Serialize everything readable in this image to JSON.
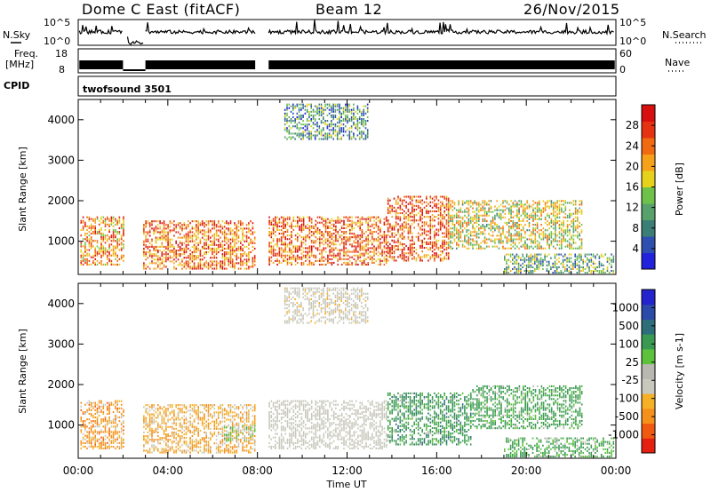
{
  "header": {
    "station": "Dome C East (fitACF)",
    "beam": "Beam 12",
    "date": "26/Nov/2015"
  },
  "panels": {
    "nsky_label": "N.Sky",
    "nsky_ticks": [
      "10^5",
      "10^0"
    ],
    "nsearch_label": "N.Search",
    "nsearch_ticks": [
      "10^5",
      "10^0"
    ],
    "freq_label": "Freq.",
    "freq_unit": "[MHz]",
    "freq_ticks": [
      "18",
      "8"
    ],
    "nave_label": "Nave",
    "nave_ticks": [
      "60",
      "0"
    ],
    "cpid_label": "CPID",
    "cpid_value": "twofsound 3501"
  },
  "colors": {
    "power_scale": [
      "#2222dd",
      "#2f4fb0",
      "#3b7e76",
      "#56a26a",
      "#6ec24a",
      "#e6d21a",
      "#f5a21a",
      "#f06a12",
      "#e63212",
      "#d80f0f"
    ],
    "velocity_scale": [
      "#e62010",
      "#f05a10",
      "#f5901a",
      "#f5b028",
      "#c8c8bc",
      "#b8b8b0",
      "#5cc23c",
      "#3a9a52",
      "#2e6e7a",
      "#2c4aa8",
      "#2424cc"
    ]
  },
  "chart_data": [
    {
      "type": "heatmap",
      "name": "power",
      "xlabel": "",
      "ylabel": "Slant Range [km]",
      "colorbar_label": "Power [dB]",
      "colorbar_ticks": [
        "28",
        "24",
        "20",
        "16",
        "12",
        "8",
        "4"
      ],
      "x_ticks": [],
      "y_ticks": [
        "4000",
        "3000",
        "2000",
        "1000"
      ],
      "xlim": [
        0,
        24
      ],
      "ylim": [
        180,
        4500
      ],
      "bands": [
        {
          "t0": 0.1,
          "t1": 2.0,
          "r0": 400,
          "r1": 1600,
          "value": 22
        },
        {
          "t0": 2.9,
          "t1": 7.9,
          "r0": 300,
          "r1": 1500,
          "value": 24
        },
        {
          "t0": 8.5,
          "t1": 13.8,
          "r0": 400,
          "r1": 1600,
          "value": 25
        },
        {
          "t0": 13.8,
          "t1": 16.5,
          "r0": 500,
          "r1": 2100,
          "value": 26
        },
        {
          "t0": 16.5,
          "t1": 22.5,
          "r0": 800,
          "r1": 2000,
          "value": 17
        },
        {
          "t0": 19.0,
          "t1": 23.9,
          "r0": 200,
          "r1": 700,
          "value": 12
        },
        {
          "t0": 9.2,
          "t1": 12.9,
          "r0": 3500,
          "r1": 4400,
          "value": 10
        }
      ]
    },
    {
      "type": "heatmap",
      "name": "velocity",
      "xlabel": "Time UT",
      "ylabel": "Slant Range [km]",
      "colorbar_label": "Velocity [m s-1]",
      "colorbar_ticks": [
        "1000",
        "500",
        "100",
        "25",
        "-25",
        "-100",
        "-500",
        "-1000"
      ],
      "x_ticks": [
        "00:00",
        "04:00",
        "08:00",
        "12:00",
        "16:00",
        "20:00",
        "00:00"
      ],
      "y_ticks": [
        "4000",
        "3000",
        "2000",
        "1000"
      ],
      "xlim": [
        0,
        24
      ],
      "ylim": [
        180,
        4500
      ],
      "bands": [
        {
          "t0": 0.1,
          "t1": 2.0,
          "r0": 400,
          "r1": 1600,
          "value": -60
        },
        {
          "t0": 2.9,
          "t1": 7.9,
          "r0": 300,
          "r1": 1500,
          "value": -40
        },
        {
          "t0": 6.5,
          "t1": 7.9,
          "r0": 600,
          "r1": 1000,
          "value": 60
        },
        {
          "t0": 8.5,
          "t1": 13.8,
          "r0": 400,
          "r1": 1600,
          "value": 0
        },
        {
          "t0": 13.8,
          "t1": 17.5,
          "r0": 500,
          "r1": 1800,
          "value": 200
        },
        {
          "t0": 17.5,
          "t1": 22.5,
          "r0": 900,
          "r1": 2000,
          "value": 150
        },
        {
          "t0": 19.0,
          "t1": 23.9,
          "r0": 200,
          "r1": 700,
          "value": 120
        },
        {
          "t0": 9.2,
          "t1": 12.9,
          "r0": 3500,
          "r1": 4400,
          "value": -10
        }
      ]
    }
  ],
  "footer": {
    "time_axis_label": "Time UT"
  }
}
